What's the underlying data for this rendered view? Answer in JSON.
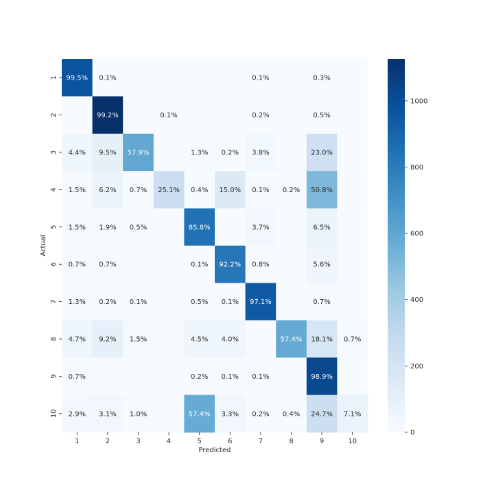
{
  "chart_data": {
    "type": "heatmap",
    "title": "",
    "xlabel": "Predicted",
    "ylabel": "Actual",
    "x_categories": [
      "1",
      "2",
      "3",
      "4",
      "5",
      "6",
      "7",
      "8",
      "9",
      "10"
    ],
    "y_categories": [
      "1",
      "2",
      "3",
      "4",
      "5",
      "6",
      "7",
      "8",
      "9",
      "10"
    ],
    "cell_labels": [
      [
        "99.5%",
        "0.1%",
        "",
        "",
        "",
        "",
        "0.1%",
        "",
        "0.3%",
        ""
      ],
      [
        "",
        "99.2%",
        "",
        "0.1%",
        "",
        "",
        "0.2%",
        "",
        "0.5%",
        ""
      ],
      [
        "4.4%",
        "9.5%",
        "57.9%",
        "",
        "1.3%",
        "0.2%",
        "3.8%",
        "",
        "23.0%",
        ""
      ],
      [
        "1.5%",
        "6.2%",
        "0.7%",
        "25.1%",
        "0.4%",
        "15.0%",
        "0.1%",
        "0.2%",
        "50.8%",
        ""
      ],
      [
        "1.5%",
        "1.9%",
        "0.5%",
        "",
        "85.8%",
        "",
        "3.7%",
        "",
        "6.5%",
        ""
      ],
      [
        "0.7%",
        "0.7%",
        "",
        "",
        "0.1%",
        "92.2%",
        "0.8%",
        "",
        "5.6%",
        ""
      ],
      [
        "1.3%",
        "0.2%",
        "0.1%",
        "",
        "0.5%",
        "0.1%",
        "97.1%",
        "",
        "0.7%",
        ""
      ],
      [
        "4.7%",
        "9.2%",
        "1.5%",
        "",
        "4.5%",
        "4.0%",
        "",
        "57.4%",
        "18.1%",
        "0.7%"
      ],
      [
        "0.7%",
        "",
        "",
        "",
        "0.2%",
        "0.1%",
        "0.1%",
        "",
        "98.9%",
        ""
      ],
      [
        "2.9%",
        "3.1%",
        "1.0%",
        "",
        "57.4%",
        "3.3%",
        "0.2%",
        "0.4%",
        "24.7%",
        "7.1%"
      ]
    ],
    "values": [
      [
        975,
        1,
        0,
        0,
        0,
        0,
        1,
        0,
        3,
        0
      ],
      [
        0,
        1126,
        0,
        1,
        0,
        0,
        2,
        0,
        6,
        0
      ],
      [
        45,
        98,
        597,
        0,
        13,
        2,
        39,
        0,
        237,
        0
      ],
      [
        15,
        63,
        7,
        253,
        4,
        152,
        1,
        2,
        513,
        0
      ],
      [
        15,
        19,
        5,
        0,
        843,
        0,
        36,
        0,
        64,
        0
      ],
      [
        6,
        6,
        0,
        0,
        1,
        822,
        7,
        0,
        50,
        0
      ],
      [
        13,
        2,
        1,
        0,
        5,
        1,
        944,
        0,
        7,
        0
      ],
      [
        48,
        95,
        15,
        0,
        46,
        41,
        0,
        590,
        186,
        7
      ],
      [
        7,
        0,
        0,
        0,
        2,
        1,
        1,
        0,
        1024,
        0
      ],
      [
        29,
        31,
        10,
        0,
        579,
        33,
        2,
        4,
        249,
        72
      ]
    ],
    "colorbar": {
      "min": 0,
      "max": 1126,
      "ticks": [
        0,
        200,
        400,
        600,
        800,
        1000
      ],
      "colormap": "Blues"
    },
    "grid": false,
    "legend": "none"
  }
}
